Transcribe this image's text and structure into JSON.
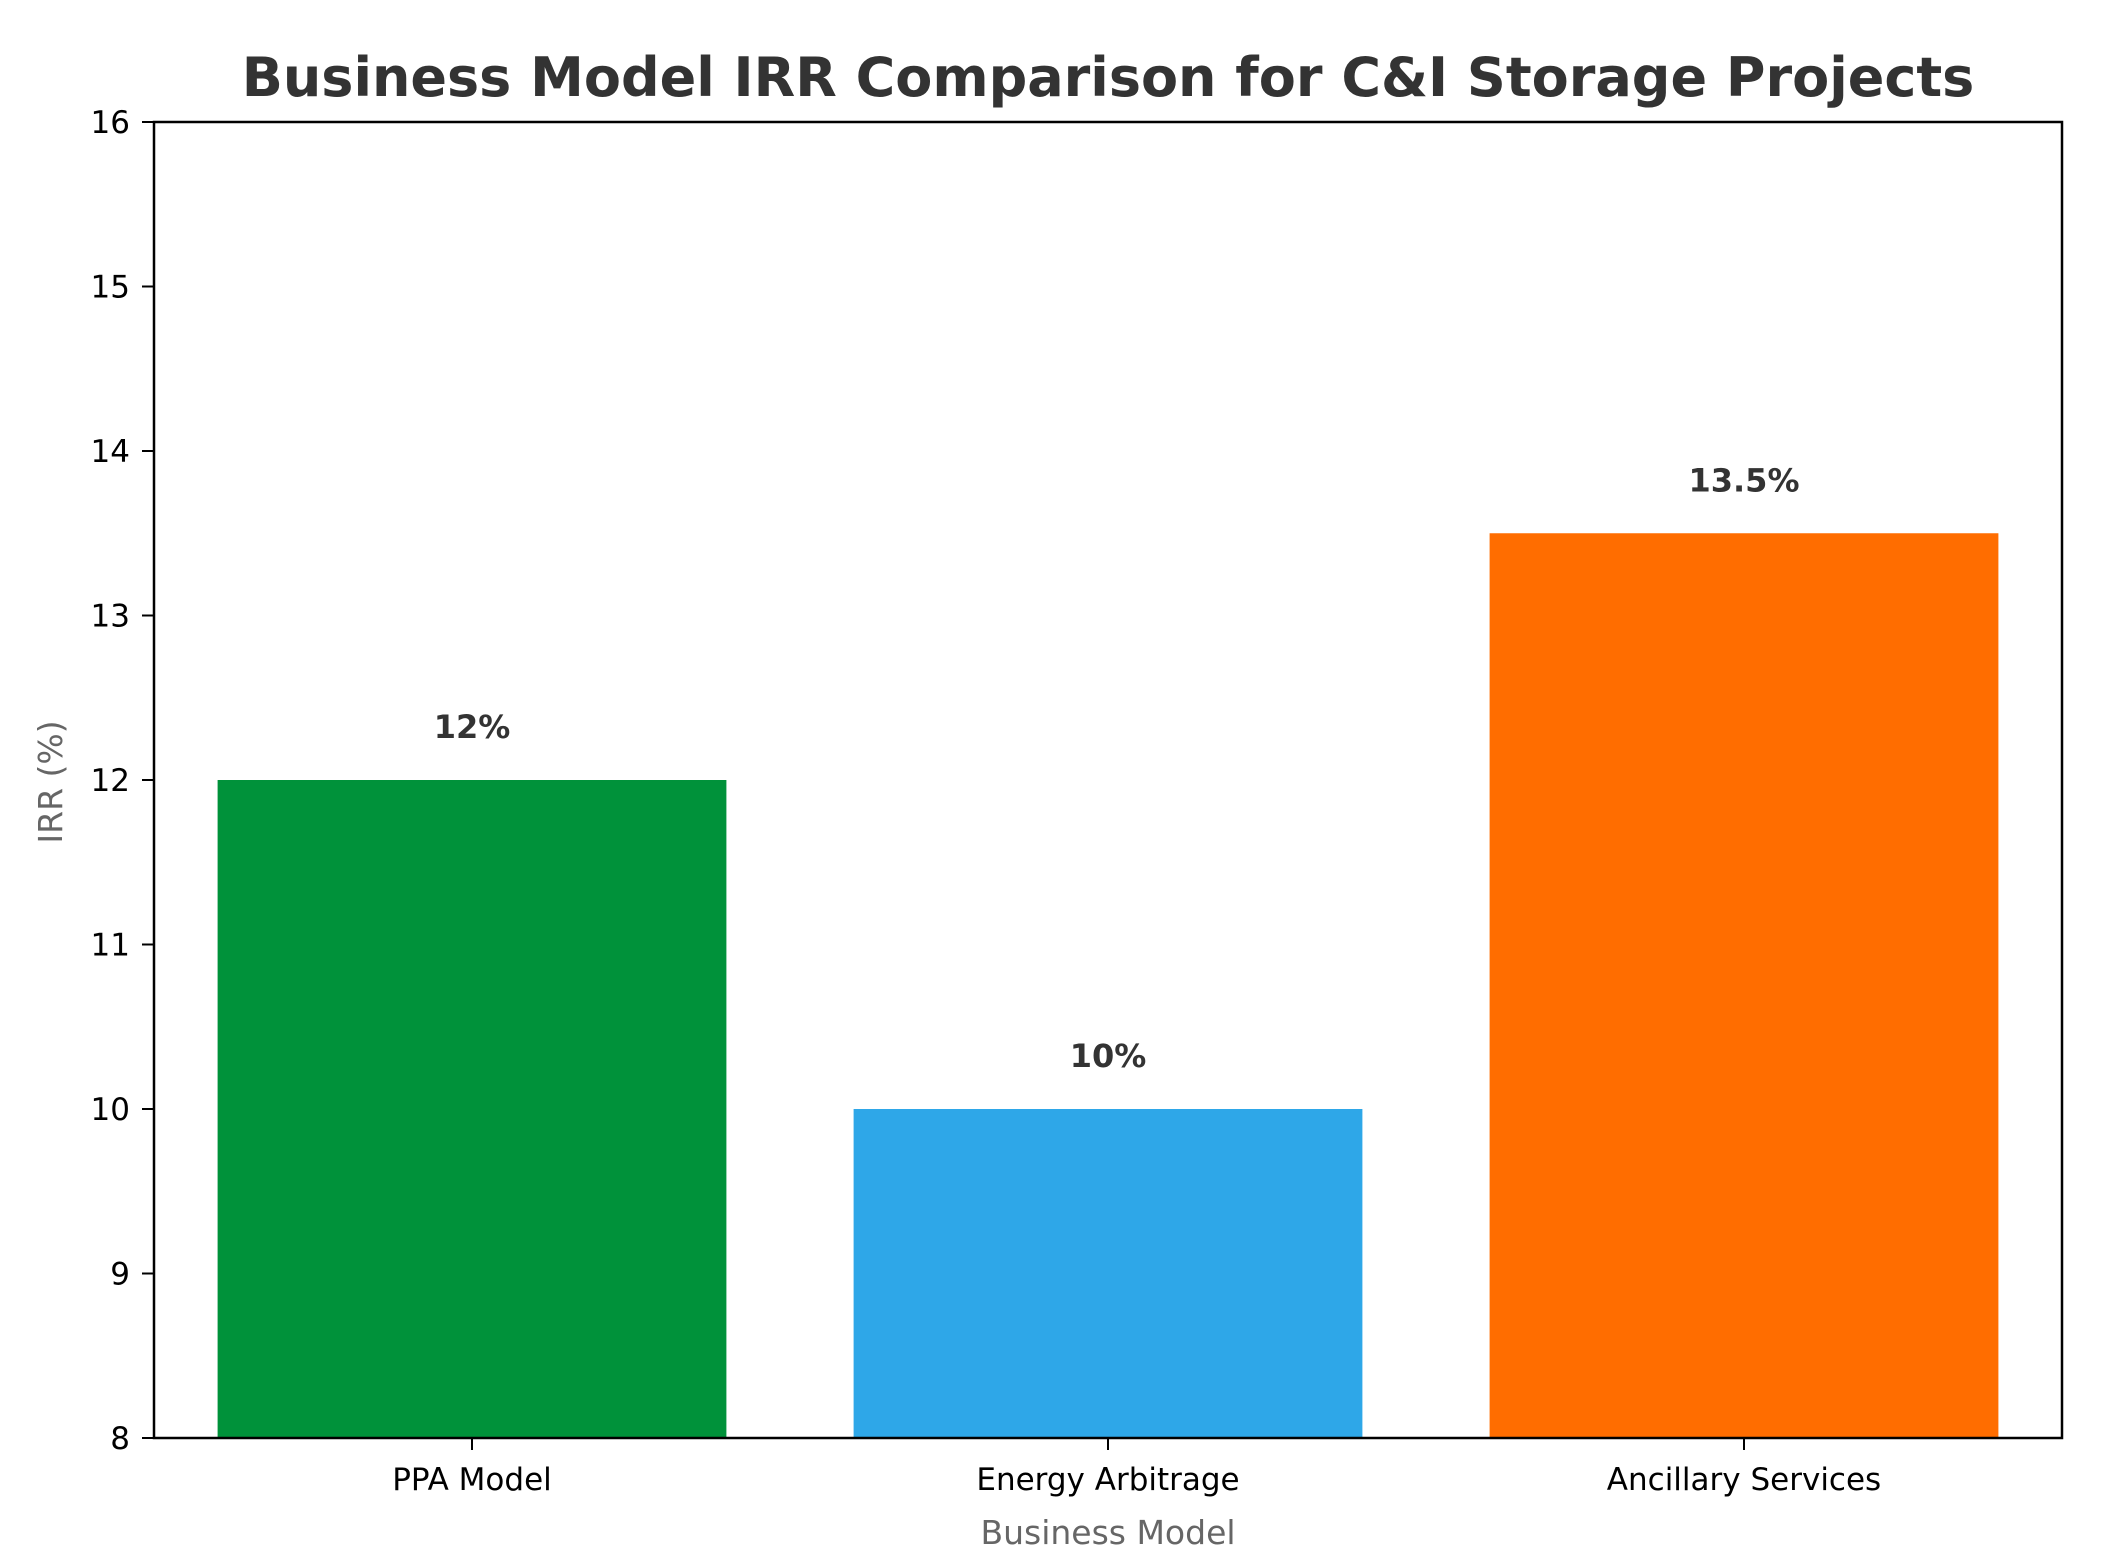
{
  "chart_data": {
    "type": "bar",
    "title": "Business Model IRR Comparison for C&I Storage Projects",
    "xlabel": "Business Model",
    "ylabel": "IRR (%)",
    "categories": [
      "PPA Model",
      "Energy Arbitrage",
      "Ancillary Services"
    ],
    "values": [
      12,
      10,
      13.5
    ],
    "value_labels": [
      "12%",
      "10%",
      "13.5%"
    ],
    "colors": [
      "#00923a",
      "#2ea7e8",
      "#ff6d00"
    ],
    "ylim": [
      8,
      16
    ],
    "yticks": [
      8,
      9,
      10,
      11,
      12,
      13,
      14,
      15,
      16
    ],
    "grid": false,
    "legend": "none"
  }
}
